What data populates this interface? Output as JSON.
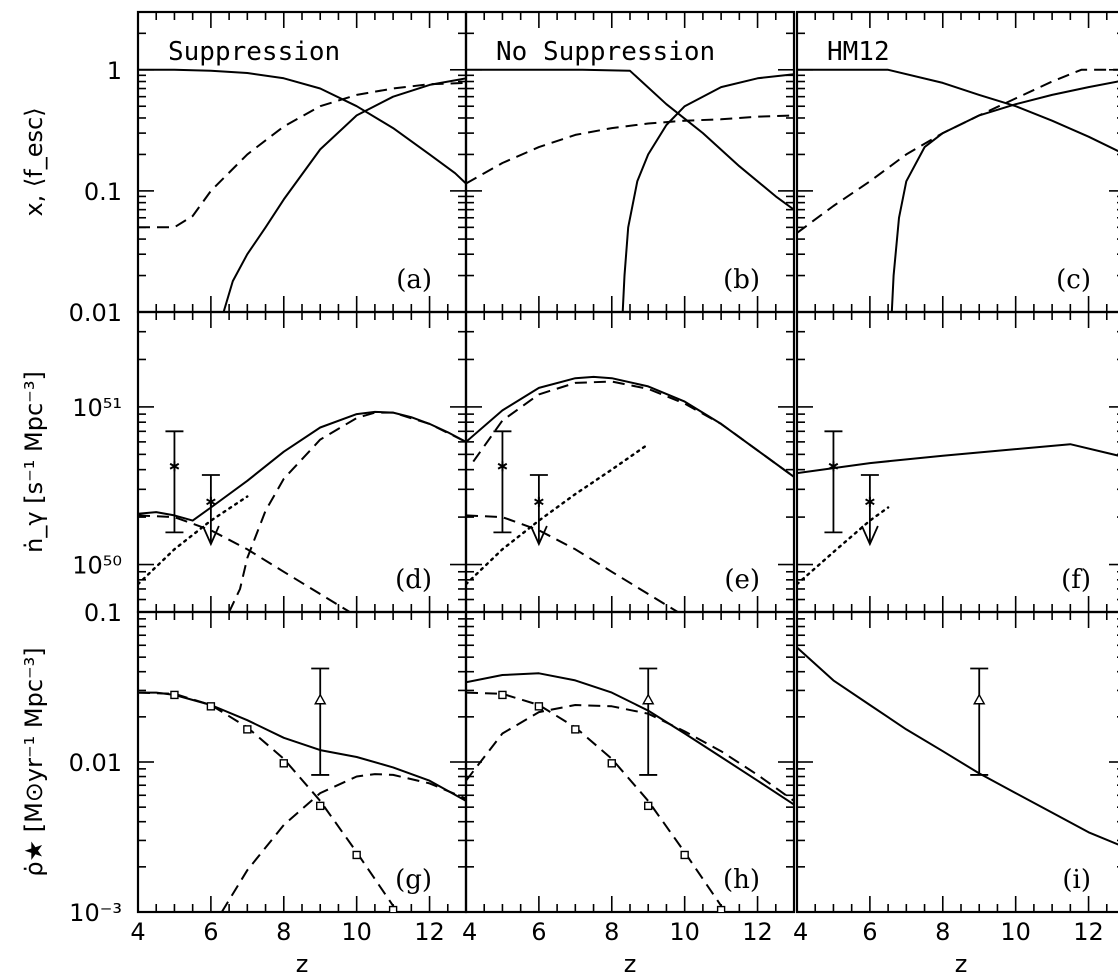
{
  "chart_data": {
    "type": "line",
    "layout": "3x3 grid, shared axes",
    "x_axis": {
      "label": "z",
      "range": [
        4,
        13
      ],
      "ticks": [
        "4",
        "6",
        "8",
        "10",
        "12"
      ]
    },
    "columns": [
      "Suppression",
      "No Suppression",
      "HM12"
    ],
    "rows": [
      {
        "ylabel": "x, ⟨f_esc⟩",
        "scale": "log",
        "ylim": [
          0.01,
          3.0
        ],
        "ytick_labels": [
          {
            "v": 1,
            "t": "1"
          },
          {
            "v": 0.1,
            "t": "0.1"
          },
          {
            "v": 0.01,
            "t": "0.01"
          }
        ]
      },
      {
        "ylabel": "ṅ_γ [s⁻¹ Mpc⁻³]",
        "scale": "log",
        "ylim": [
          5e+49,
          4e+51
        ],
        "ytick_labels": [
          {
            "v": 1e+51,
            "t": "10⁵¹"
          },
          {
            "v": 1e+50,
            "t": "10⁵⁰"
          }
        ]
      },
      {
        "ylabel": "ρ̇★ [M⊙yr⁻¹ Mpc⁻³]",
        "scale": "log",
        "ylim": [
          0.001,
          0.1
        ],
        "ytick_labels": [
          {
            "v": 0.1,
            "t": "0.1"
          },
          {
            "v": 0.01,
            "t": "0.01"
          },
          {
            "v": 0.001,
            "t": "10⁻³"
          }
        ]
      }
    ],
    "panels": [
      {
        "id": "a",
        "row": 0,
        "col": 0,
        "tag": "(a)",
        "title": "Suppression",
        "series": [
          {
            "style": "solid",
            "x": [
              4,
              5,
              6,
              7,
              8,
              9,
              10,
              11,
              12,
              12.7,
              13
            ],
            "y": [
              1,
              1,
              0.98,
              0.94,
              0.85,
              0.7,
              0.5,
              0.33,
              0.2,
              0.14,
              0.115
            ]
          },
          {
            "style": "solid",
            "x": [
              6.35,
              6.6,
              7,
              7.5,
              8,
              9,
              10,
              11,
              12,
              13
            ],
            "y": [
              0.01,
              0.018,
              0.03,
              0.05,
              0.085,
              0.22,
              0.42,
              0.6,
              0.75,
              0.85
            ]
          },
          {
            "style": "dashed",
            "x": [
              4,
              5,
              5.5,
              6,
              7,
              8,
              9,
              10,
              11,
              12,
              13
            ],
            "y": [
              0.05,
              0.05,
              0.062,
              0.1,
              0.2,
              0.34,
              0.5,
              0.62,
              0.7,
              0.76,
              0.78
            ]
          }
        ]
      },
      {
        "id": "b",
        "row": 0,
        "col": 1,
        "tag": "(b)",
        "title": "No Suppression",
        "series": [
          {
            "style": "solid",
            "x": [
              4,
              7.2,
              8.5,
              9.5,
              10.5,
              11.5,
              12.5,
              13
            ],
            "y": [
              1,
              1,
              0.98,
              0.52,
              0.3,
              0.16,
              0.09,
              0.07
            ]
          },
          {
            "style": "solid",
            "x": [
              8.3,
              8.35,
              8.45,
              8.7,
              9,
              9.5,
              10,
              11,
              12,
              13
            ],
            "y": [
              0.01,
              0.02,
              0.05,
              0.12,
              0.2,
              0.35,
              0.5,
              0.72,
              0.85,
              0.92
            ]
          },
          {
            "style": "dashed",
            "x": [
              4,
              4.5,
              5,
              6,
              7,
              8,
              9,
              10,
              11,
              12,
              13
            ],
            "y": [
              0.115,
              0.14,
              0.17,
              0.23,
              0.29,
              0.33,
              0.36,
              0.38,
              0.39,
              0.41,
              0.42
            ]
          }
        ]
      },
      {
        "id": "c",
        "row": 0,
        "col": 2,
        "tag": "(c)",
        "title": "HM12",
        "series": [
          {
            "style": "solid",
            "x": [
              4,
              6.5,
              8,
              9,
              10,
              11,
              12,
              13
            ],
            "y": [
              1,
              1,
              0.78,
              0.62,
              0.5,
              0.38,
              0.28,
              0.2
            ]
          },
          {
            "style": "solid",
            "x": [
              6.6,
              6.65,
              6.8,
              7,
              7.5,
              8,
              9,
              10,
              11,
              12,
              13
            ],
            "y": [
              0.01,
              0.02,
              0.06,
              0.12,
              0.23,
              0.3,
              0.42,
              0.52,
              0.62,
              0.72,
              0.82
            ]
          },
          {
            "style": "dashed",
            "x": [
              4,
              5,
              6,
              7,
              8,
              9,
              10,
              11,
              11.8,
              13
            ],
            "y": [
              0.045,
              0.075,
              0.12,
              0.2,
              0.3,
              0.42,
              0.58,
              0.8,
              1,
              1
            ]
          }
        ]
      },
      {
        "id": "d",
        "row": 1,
        "col": 0,
        "tag": "(d)",
        "series": [
          {
            "style": "solid",
            "x": [
              4,
              4.5,
              5,
              5.5,
              6,
              7,
              8,
              9,
              10,
              10.5,
              11,
              11.5,
              12,
              12.5,
              13
            ],
            "y": [
              2.1e+50,
              2.15e+50,
              2.05e+50,
              1.9e+50,
              2.3e+50,
              3.4e+50,
              5.2e+50,
              7.4e+50,
              9e+50,
              9.3e+50,
              9.2e+50,
              8.6e+50,
              7.8e+50,
              6.9e+50,
              6e+50
            ]
          },
          {
            "style": "dashed",
            "x": [
              4,
              5,
              6,
              7,
              8,
              9,
              10
            ],
            "y": [
              2.05e+50,
              2e+50,
              1.65e+50,
              1.25e+50,
              9e+49,
              6.5e+49,
              4.7e+49
            ]
          },
          {
            "style": "dashed",
            "x": [
              6.5,
              6.8,
              7,
              7.5,
              8,
              9,
              10,
              10.5,
              11,
              12,
              13
            ],
            "y": [
              5e+49,
              7e+49,
              1.1e+50,
              2.2e+50,
              3.5e+50,
              6.2e+50,
              8.5e+50,
              9.2e+50,
              9.2e+50,
              7.8e+50,
              6e+50
            ]
          },
          {
            "style": "dotted",
            "x": [
              4,
              5,
              6,
              7
            ],
            "y": [
              7.5e+49,
              1.25e+50,
              1.9e+50,
              2.7e+50
            ]
          }
        ]
      },
      {
        "id": "e",
        "row": 1,
        "col": 1,
        "tag": "(e)",
        "series": [
          {
            "style": "solid",
            "x": [
              4,
              5,
              6,
              7,
              7.5,
              8,
              9,
              10,
              11,
              12,
              13
            ],
            "y": [
              6e+50,
              9.5e+50,
              1.32e+51,
              1.52e+51,
              1.55e+51,
              1.52e+51,
              1.35e+51,
              1.08e+51,
              7.8e+50,
              5.3e+50,
              3.6e+50
            ]
          },
          {
            "style": "dashed",
            "x": [
              4.2,
              5,
              6,
              7,
              8,
              9,
              10,
              11,
              12,
              13
            ],
            "y": [
              4.5e+50,
              8.2e+50,
              1.2e+51,
              1.42e+51,
              1.45e+51,
              1.3e+51,
              1.05e+51,
              7.8e+50,
              5.3e+50,
              3.6e+50
            ]
          },
          {
            "style": "dashed",
            "x": [
              4,
              5,
              6,
              7,
              8,
              9,
              10
            ],
            "y": [
              2.05e+50,
              2e+50,
              1.65e+50,
              1.25e+50,
              9e+49,
              6.5e+49,
              4.7e+49
            ]
          },
          {
            "style": "dotted",
            "x": [
              4,
              5,
              6,
              7,
              8,
              9
            ],
            "y": [
              7.5e+49,
              1.25e+50,
              1.9e+50,
              2.8e+50,
              4e+50,
              5.8e+50
            ]
          }
        ]
      },
      {
        "id": "f",
        "row": 1,
        "col": 2,
        "tag": "(f)",
        "series": [
          {
            "style": "solid",
            "x": [
              4,
              6,
              8,
              10,
              11.5,
              13
            ],
            "y": [
              3.8e+50,
              4.4e+50,
              4.9e+50,
              5.4e+50,
              5.8e+50,
              4.8e+50
            ]
          },
          {
            "style": "dotted",
            "x": [
              4,
              5,
              6,
              6.5
            ],
            "y": [
              7.5e+49,
              1.2e+50,
              1.9e+50,
              2.3e+50
            ]
          }
        ]
      },
      {
        "id": "g",
        "row": 2,
        "col": 0,
        "tag": "(g)",
        "series": [
          {
            "style": "solid",
            "x": [
              4,
              4.5,
              5,
              6,
              7,
              8,
              9,
              10,
              11,
              12,
              13
            ],
            "y": [
              0.029,
              0.029,
              0.028,
              0.024,
              0.019,
              0.0145,
              0.012,
              0.0108,
              0.0092,
              0.0075,
              0.0055
            ]
          },
          {
            "style": "dashed",
            "x": [
              4,
              5,
              6,
              7,
              8,
              9,
              10,
              11,
              11.5
            ],
            "y": [
              0.029,
              0.0285,
              0.024,
              0.017,
              0.0105,
              0.0055,
              0.0025,
              0.0011,
              0.00075
            ]
          },
          {
            "style": "dashed",
            "x": [
              6.3,
              7,
              8,
              9,
              10,
              10.5,
              11,
              12,
              13
            ],
            "y": [
              0.001,
              0.0019,
              0.0038,
              0.0062,
              0.008,
              0.0083,
              0.0082,
              0.0072,
              0.0057
            ]
          }
        ]
      },
      {
        "id": "h",
        "row": 2,
        "col": 1,
        "tag": "(h)",
        "series": [
          {
            "style": "solid",
            "x": [
              4,
              5,
              6,
              7,
              8,
              9,
              10,
              11,
              12,
              13
            ],
            "y": [
              0.034,
              0.038,
              0.039,
              0.035,
              0.029,
              0.022,
              0.0155,
              0.0108,
              0.0075,
              0.0052
            ]
          },
          {
            "style": "dashed",
            "x": [
              4,
              5,
              6,
              7,
              8,
              9,
              10,
              11,
              11.5
            ],
            "y": [
              0.029,
              0.0285,
              0.024,
              0.017,
              0.0105,
              0.0055,
              0.0025,
              0.0011,
              0.00075
            ]
          },
          {
            "style": "dashed",
            "x": [
              4,
              5,
              6,
              7,
              8,
              9,
              10,
              11,
              12,
              13
            ],
            "y": [
              0.0075,
              0.0155,
              0.0215,
              0.024,
              0.0235,
              0.021,
              0.016,
              0.0118,
              0.0082,
              0.0055
            ]
          }
        ]
      },
      {
        "id": "i",
        "row": 2,
        "col": 2,
        "tag": "(i)",
        "series": [
          {
            "style": "solid",
            "x": [
              4,
              5,
              6,
              7,
              8,
              9,
              10,
              11,
              12,
              13
            ],
            "y": [
              0.058,
              0.035,
              0.024,
              0.0165,
              0.0118,
              0.0084,
              0.0062,
              0.0046,
              0.0034,
              0.0027
            ]
          }
        ]
      }
    ],
    "observations": {
      "emissivity_points": [
        {
          "x": 5,
          "y": 4.2e+50,
          "lo": 1.6e+50,
          "hi": 7e+50,
          "marker": "asterisk"
        },
        {
          "x": 6,
          "y": 2.5e+50,
          "upper_limit_to": 1.35e+50,
          "hi": 3.7e+50,
          "marker": "asterisk"
        }
      ],
      "sfrd_squares": [
        {
          "x": 5,
          "y": 0.028
        },
        {
          "x": 6,
          "y": 0.0235
        },
        {
          "x": 7,
          "y": 0.0165
        },
        {
          "x": 8,
          "y": 0.0098
        },
        {
          "x": 9,
          "y": 0.0051
        },
        {
          "x": 10,
          "y": 0.0024
        },
        {
          "x": 11,
          "y": 0.00103
        }
      ],
      "sfrd_triangle": {
        "x": 9,
        "y": 0.026,
        "lo": 0.0082,
        "hi": 0.042
      }
    }
  }
}
